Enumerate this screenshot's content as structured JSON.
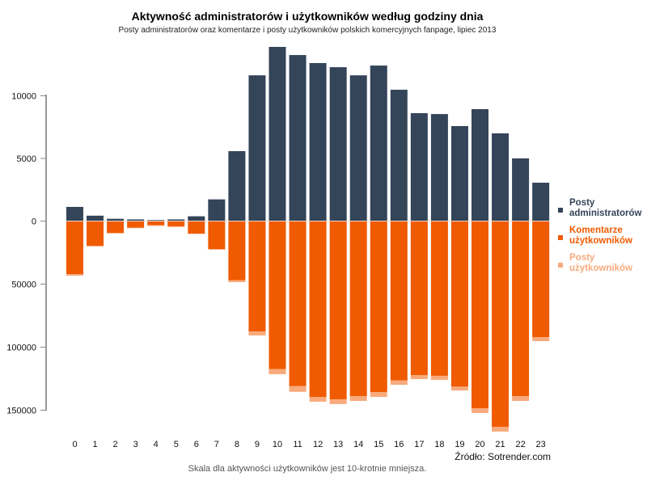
{
  "chart_data": {
    "type": "bar",
    "title": "Aktywność administratorów i użytkowników według godziny dnia",
    "subtitle": "Posty administratorów oraz komentarze i posty użytkowników polskich komercyjnych fanpage, lipiec 2013",
    "xlabel": "",
    "ylabel": "",
    "categories": [
      "0",
      "1",
      "2",
      "3",
      "4",
      "5",
      "6",
      "7",
      "8",
      "9",
      "10",
      "11",
      "12",
      "13",
      "14",
      "15",
      "16",
      "17",
      "18",
      "19",
      "20",
      "21",
      "22",
      "23"
    ],
    "upper_axis": {
      "ylim": [
        0,
        14000
      ],
      "ticks": [
        0,
        5000,
        10000
      ],
      "tick_labels": [
        "0",
        "5000",
        "10000"
      ]
    },
    "lower_axis": {
      "ylim": [
        0,
        165000
      ],
      "ticks": [
        50000,
        100000,
        150000
      ],
      "tick_labels": [
        "50000",
        "100000",
        "150000"
      ],
      "direction": "down"
    },
    "series": [
      {
        "name": "Posty administratorów",
        "legend_label": [
          "Posty",
          "administratorów"
        ],
        "color": "#344459",
        "axis": "upper",
        "values": [
          1100,
          400,
          150,
          100,
          50,
          100,
          350,
          1700,
          5550,
          11600,
          13870,
          13220,
          12580,
          12250,
          11600,
          12380,
          10450,
          8580,
          8510,
          7550,
          8900,
          6970,
          4970,
          3030
        ]
      },
      {
        "name": "Komentarze użytkowników",
        "legend_label": [
          "Komentarze",
          "użytkowników"
        ],
        "color": "#f05a00",
        "axis": "lower",
        "values": [
          41700,
          19200,
          9000,
          5000,
          3000,
          3800,
          9600,
          21800,
          46600,
          87200,
          117100,
          130600,
          139100,
          141000,
          138500,
          135300,
          126100,
          121800,
          122400,
          131000,
          148100,
          162800,
          138500,
          91700
        ]
      },
      {
        "name": "Posty użytkowników",
        "legend_label": [
          "Posty",
          "użytkowników"
        ],
        "color": "#f8aa7c",
        "axis": "lower",
        "stacked_on": "Komentarze użytkowników",
        "values": [
          1300,
          600,
          500,
          300,
          500,
          600,
          300,
          600,
          1500,
          3200,
          4000,
          4500,
          3800,
          3800,
          3800,
          3800,
          3400,
          3200,
          3200,
          3000,
          3800,
          3800,
          3800,
          3200
        ]
      }
    ],
    "legend_position": "right",
    "grid": false,
    "source": "Źródło: Sotrender.com",
    "note": "Skala dla aktywności użytkowników jest 10-krotnie mniejsza."
  }
}
